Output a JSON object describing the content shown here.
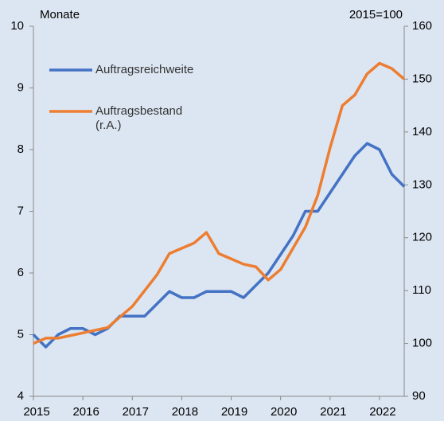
{
  "chart_data": {
    "type": "line",
    "y_label": "Monate",
    "y2_label": "2015=100",
    "x": [
      2015.0,
      2015.25,
      2015.5,
      2015.75,
      2016.0,
      2016.25,
      2016.5,
      2016.75,
      2017.0,
      2017.25,
      2017.5,
      2017.75,
      2018.0,
      2018.25,
      2018.5,
      2018.75,
      2019.0,
      2019.25,
      2019.5,
      2019.75,
      2020.0,
      2020.25,
      2020.5,
      2020.75,
      2021.0,
      2021.25,
      2021.5,
      2021.75,
      2022.0,
      2022.25,
      2022.5
    ],
    "series": [
      {
        "name": "Auftragsreichweite",
        "color": "#4472c4",
        "axis": "y",
        "values": [
          5.0,
          4.8,
          5.0,
          5.1,
          5.1,
          5.0,
          5.1,
          5.3,
          5.3,
          5.3,
          5.5,
          5.7,
          5.6,
          5.6,
          5.7,
          5.7,
          5.7,
          5.6,
          5.8,
          6.0,
          6.3,
          6.6,
          7.0,
          7.0,
          7.3,
          7.6,
          7.9,
          8.1,
          8.0,
          7.6,
          7.4
        ]
      },
      {
        "name": "Auftragsbestand (r.A.)",
        "color": "#ed7d31",
        "axis": "y2",
        "values": [
          100,
          101,
          101,
          101.5,
          102,
          102.5,
          103,
          105,
          107,
          110,
          113,
          117,
          118,
          119,
          121,
          117,
          116,
          115,
          114.5,
          112,
          114,
          118,
          122,
          128,
          137,
          145,
          147,
          151,
          153,
          152,
          150
        ]
      }
    ],
    "xlim": [
      2015,
      2022.5
    ],
    "xticks": [
      2015,
      2016,
      2017,
      2018,
      2019,
      2020,
      2021,
      2022
    ],
    "ylim": [
      4,
      10
    ],
    "yticks": [
      4,
      5,
      6,
      7,
      8,
      9,
      10
    ],
    "y2lim": [
      90,
      160
    ],
    "y2ticks": [
      90,
      100,
      110,
      120,
      130,
      140,
      150,
      160
    ],
    "grid": false
  }
}
